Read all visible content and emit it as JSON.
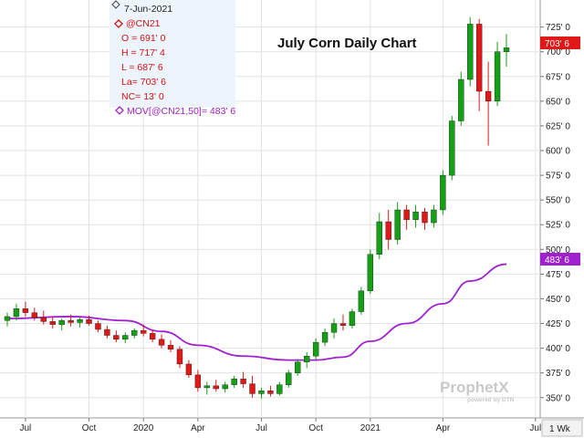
{
  "legend": {
    "date": "7-Jun-2021",
    "symbol": "@CN21",
    "open": "O = 691' 0",
    "high": "H = 717' 4",
    "low": "L = 687' 6",
    "last": "La= 703' 6",
    "net_change": "NC= 13' 0",
    "moving_average": "MOV[@CN21,50]= 483' 6"
  },
  "watermark": {
    "brand": "ProphetX",
    "tagline": "powered by DTN"
  },
  "period_button": "1 Wk",
  "colors": {
    "up": "#14a014",
    "down": "#e01818",
    "moving_average": "#a020d0",
    "last_badge": "#e01818",
    "ma_badge": "#a020d0",
    "grid": "#e2e2e2"
  },
  "chart_data": {
    "type": "candlestick",
    "title": "July Corn Daily Chart",
    "x_tick_labels": [
      "Jul",
      "Oct",
      "2020",
      "Apr",
      "Jul",
      "Oct",
      "2021",
      "Apr",
      "Jul"
    ],
    "y_tick_labels": [
      "350' 0",
      "375' 0",
      "400' 0",
      "425' 0",
      "450' 0",
      "475' 0",
      "500' 0",
      "525' 0",
      "550' 0",
      "575' 0",
      "600' 0",
      "625' 0",
      "650' 0",
      "675' 0",
      "700' 0",
      "725' 0"
    ],
    "ylim": [
      335,
      745
    ],
    "y_scale": "cents per bushel",
    "last_price_label": "703' 6",
    "moving_average_label": "483' 6",
    "grid": true,
    "legend_position": "top-left",
    "weekly_bars": [
      {
        "week": "2019-06",
        "o": 428,
        "h": 436,
        "l": 422,
        "c": 432
      },
      {
        "week": "2019-07a",
        "o": 432,
        "h": 445,
        "l": 428,
        "c": 440
      },
      {
        "week": "2019-07b",
        "o": 440,
        "h": 447,
        "l": 432,
        "c": 436
      },
      {
        "week": "2019-07c",
        "o": 436,
        "h": 441,
        "l": 428,
        "c": 431
      },
      {
        "week": "2019-08a",
        "o": 431,
        "h": 438,
        "l": 424,
        "c": 427
      },
      {
        "week": "2019-08b",
        "o": 427,
        "h": 432,
        "l": 420,
        "c": 424
      },
      {
        "week": "2019-08c",
        "o": 424,
        "h": 430,
        "l": 418,
        "c": 428
      },
      {
        "week": "2019-09a",
        "o": 428,
        "h": 434,
        "l": 422,
        "c": 426
      },
      {
        "week": "2019-09b",
        "o": 426,
        "h": 431,
        "l": 421,
        "c": 429
      },
      {
        "week": "2019-10a",
        "o": 429,
        "h": 433,
        "l": 423,
        "c": 425
      },
      {
        "week": "2019-10b",
        "o": 425,
        "h": 428,
        "l": 416,
        "c": 419
      },
      {
        "week": "2019-11a",
        "o": 419,
        "h": 423,
        "l": 410,
        "c": 413
      },
      {
        "week": "2019-11b",
        "o": 413,
        "h": 418,
        "l": 406,
        "c": 409
      },
      {
        "week": "2019-12a",
        "o": 409,
        "h": 416,
        "l": 405,
        "c": 413
      },
      {
        "week": "2019-12b",
        "o": 413,
        "h": 420,
        "l": 410,
        "c": 418
      },
      {
        "week": "2020-01a",
        "o": 418,
        "h": 424,
        "l": 412,
        "c": 415
      },
      {
        "week": "2020-01b",
        "o": 415,
        "h": 418,
        "l": 406,
        "c": 409
      },
      {
        "week": "2020-02a",
        "o": 409,
        "h": 414,
        "l": 400,
        "c": 403
      },
      {
        "week": "2020-02b",
        "o": 403,
        "h": 408,
        "l": 396,
        "c": 399
      },
      {
        "week": "2020-03a",
        "o": 399,
        "h": 402,
        "l": 380,
        "c": 384
      },
      {
        "week": "2020-03b",
        "o": 384,
        "h": 388,
        "l": 370,
        "c": 373
      },
      {
        "week": "2020-04a",
        "o": 373,
        "h": 378,
        "l": 356,
        "c": 360
      },
      {
        "week": "2020-04b",
        "o": 360,
        "h": 366,
        "l": 353,
        "c": 362
      },
      {
        "week": "2020-05a",
        "o": 362,
        "h": 368,
        "l": 356,
        "c": 359
      },
      {
        "week": "2020-05b",
        "o": 359,
        "h": 366,
        "l": 355,
        "c": 363
      },
      {
        "week": "2020-06a",
        "o": 363,
        "h": 372,
        "l": 360,
        "c": 369
      },
      {
        "week": "2020-06b",
        "o": 369,
        "h": 376,
        "l": 360,
        "c": 364
      },
      {
        "week": "2020-06c",
        "o": 364,
        "h": 372,
        "l": 350,
        "c": 354
      },
      {
        "week": "2020-07a",
        "o": 354,
        "h": 360,
        "l": 349,
        "c": 357
      },
      {
        "week": "2020-07b",
        "o": 357,
        "h": 362,
        "l": 351,
        "c": 354
      },
      {
        "week": "2020-08a",
        "o": 354,
        "h": 366,
        "l": 352,
        "c": 363
      },
      {
        "week": "2020-08b",
        "o": 363,
        "h": 378,
        "l": 360,
        "c": 375
      },
      {
        "week": "2020-09a",
        "o": 375,
        "h": 389,
        "l": 372,
        "c": 386
      },
      {
        "week": "2020-09b",
        "o": 386,
        "h": 396,
        "l": 380,
        "c": 392
      },
      {
        "week": "2020-10a",
        "o": 392,
        "h": 410,
        "l": 388,
        "c": 406
      },
      {
        "week": "2020-10b",
        "o": 406,
        "h": 420,
        "l": 402,
        "c": 416
      },
      {
        "week": "2020-11a",
        "o": 416,
        "h": 430,
        "l": 410,
        "c": 425
      },
      {
        "week": "2020-11b",
        "o": 425,
        "h": 434,
        "l": 418,
        "c": 423
      },
      {
        "week": "2020-12a",
        "o": 423,
        "h": 440,
        "l": 420,
        "c": 437
      },
      {
        "week": "2020-12b",
        "o": 437,
        "h": 462,
        "l": 434,
        "c": 458
      },
      {
        "week": "2021-01a",
        "o": 458,
        "h": 500,
        "l": 455,
        "c": 495
      },
      {
        "week": "2021-01b",
        "o": 495,
        "h": 537,
        "l": 490,
        "c": 528
      },
      {
        "week": "2021-01c",
        "o": 528,
        "h": 540,
        "l": 500,
        "c": 510
      },
      {
        "week": "2021-02a",
        "o": 510,
        "h": 548,
        "l": 505,
        "c": 540
      },
      {
        "week": "2021-02b",
        "o": 540,
        "h": 545,
        "l": 520,
        "c": 530
      },
      {
        "week": "2021-03a",
        "o": 530,
        "h": 545,
        "l": 522,
        "c": 538
      },
      {
        "week": "2021-03b",
        "o": 538,
        "h": 542,
        "l": 520,
        "c": 527
      },
      {
        "week": "2021-03c",
        "o": 527,
        "h": 545,
        "l": 522,
        "c": 540
      },
      {
        "week": "2021-04a",
        "o": 540,
        "h": 580,
        "l": 535,
        "c": 575
      },
      {
        "week": "2021-04b",
        "o": 575,
        "h": 635,
        "l": 570,
        "c": 630
      },
      {
        "week": "2021-04c",
        "o": 630,
        "h": 680,
        "l": 625,
        "c": 672
      },
      {
        "week": "2021-05a",
        "o": 672,
        "h": 735,
        "l": 665,
        "c": 728
      },
      {
        "week": "2021-05b",
        "o": 728,
        "h": 733,
        "l": 640,
        "c": 660
      },
      {
        "week": "2021-05c",
        "o": 660,
        "h": 690,
        "l": 605,
        "c": 650
      },
      {
        "week": "2021-05d",
        "o": 650,
        "h": 710,
        "l": 645,
        "c": 700
      },
      {
        "week": "2021-06a",
        "o": 700,
        "h": 718,
        "l": 685,
        "c": 704
      }
    ],
    "moving_average_50": [
      {
        "week": "2019-06",
        "v": 430
      },
      {
        "week": "2019-09a",
        "v": 432
      },
      {
        "week": "2019-12a",
        "v": 428
      },
      {
        "week": "2020-02a",
        "v": 417
      },
      {
        "week": "2020-04a",
        "v": 403
      },
      {
        "week": "2020-06b",
        "v": 392
      },
      {
        "week": "2020-08b",
        "v": 388
      },
      {
        "week": "2020-10a",
        "v": 388
      },
      {
        "week": "2020-11b",
        "v": 391
      },
      {
        "week": "2021-01a",
        "v": 407
      },
      {
        "week": "2021-02b",
        "v": 425
      },
      {
        "week": "2021-04a",
        "v": 445
      },
      {
        "week": "2021-05a",
        "v": 468
      },
      {
        "week": "2021-06a",
        "v": 485
      }
    ]
  }
}
